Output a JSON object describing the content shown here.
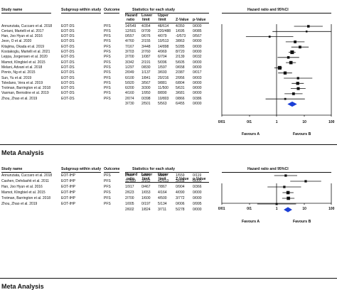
{
  "panels": [
    {
      "headers": {
        "study": "Study name",
        "subgroup": "Subgroup within study",
        "outcome": "Outcome",
        "stats": "Statistics for each study",
        "forest": "Hazard ratio and 95%CI",
        "hr": [
          "Hazard",
          "ratio"
        ],
        "lower": [
          "Lower",
          "limit"
        ],
        "upper": [
          "Upper",
          "limit"
        ],
        "z": "Z-Value",
        "p": "p-Value"
      },
      "rows": [
        {
          "study": "Annunziata, Cuccaro et al. 2018",
          "subgroup": "EOT-DS",
          "outcome": "PFS",
          "hr": "14/549",
          "lower": "4/354",
          "upper": "48/614",
          "z": "4/350",
          "p": "0/000"
        },
        {
          "study": "Ceriani, Martelli et al. 2017",
          "subgroup": "EOT-DS",
          "outcome": "PFS",
          "hr": "12/501",
          "lower": "0/709",
          "upper": "220/488",
          "z": "1/695",
          "p": "0/085"
        },
        {
          "study": "Han, Joo Hyun et al. 2016",
          "subgroup": "EOT-DS",
          "outcome": "PFS",
          "hr": "0/557",
          "lower": "0/076",
          "upper": "4/079",
          "z": "-0/573",
          "p": "0/567"
        },
        {
          "study": "Jeon, O et al. 2020",
          "subgroup": "EOT-DS",
          "outcome": "PFS",
          "hr": "4/760",
          "lower": "2/155",
          "upper": "10/513",
          "z": "3/863",
          "p": "0/000"
        },
        {
          "study": "Kitajima, Okada et al. 2019",
          "subgroup": "EOT-DS",
          "outcome": "PFS",
          "hr": "7/167",
          "lower": "3/448",
          "upper": "14/898",
          "z": "5/285",
          "p": "0/000"
        },
        {
          "study": "Kostakoglu, Martelli et al. 2021",
          "subgroup": "EOT-DS",
          "outcome": "PFS",
          "hr": "3/703",
          "lower": "2/760",
          "upper": "4/969",
          "z": "8/720",
          "p": "0/000"
        },
        {
          "study": "Leppa, Jorgensen et al. 2020",
          "subgroup": "EOT-DS",
          "outcome": "PFS",
          "hr": "2/700",
          "lower": "1/087",
          "upper": "6/704",
          "z": "2/139",
          "p": "0/032"
        },
        {
          "study": "Mamot, Klingbiel et al. 2015",
          "subgroup": "EOT-DS",
          "outcome": "PFS",
          "hr": "3/342",
          "lower": "2/191",
          "upper": "5/096",
          "z": "5/605",
          "p": "0/000"
        },
        {
          "study": "Melani, Advani et al. 2018",
          "subgroup": "EOT-DS",
          "outcome": "PFS",
          "hr": "1/297",
          "lower": "0/830",
          "upper": "1/597",
          "z": "0/658",
          "p": "0/000"
        },
        {
          "study": "Pinnix, Ng et al. 2015",
          "subgroup": "EOT-DS",
          "outcome": "PFS",
          "hr": "2/049",
          "lower": "1/137",
          "upper": "3/693",
          "z": "2/387",
          "p": "0/017"
        },
        {
          "study": "Sun, Yu et al. 2019",
          "subgroup": "EOT-DS",
          "outcome": "PFS",
          "hr": "6/100",
          "lower": "1/841",
          "upper": "20/216",
          "z": "2/956",
          "p": "0/003"
        },
        {
          "study": "Toledano, Vera et al. 2019",
          "subgroup": "EOT-DS",
          "outcome": "PFS",
          "hr": "5/920",
          "lower": "3/567",
          "upper": "9/881",
          "z": "6/804",
          "p": "0/000"
        },
        {
          "study": "Trotman, Barrington et al. 2018",
          "subgroup": "EOT-DS",
          "outcome": "PFS",
          "hr": "6/200",
          "lower": "3/300",
          "upper": "11/500",
          "z": "5/631",
          "p": "0/000"
        },
        {
          "study": "Vaxman, Bernstine et al. 2019",
          "subgroup": "EOT-DS",
          "outcome": "PFS",
          "hr": "4/160",
          "lower": "1/950",
          "upper": "8/890",
          "z": "3/681",
          "p": "0/000"
        },
        {
          "study": "Zhou, Zhao et al. 2019",
          "subgroup": "EOT-DS",
          "outcome": "PFS",
          "hr": "2/074",
          "lower": "0/398",
          "upper": "10/803",
          "z": "0/866",
          "p": "0/386"
        }
      ],
      "summary": {
        "hr": "3/730",
        "lower": "2/501",
        "upper": "5/563",
        "z": "6/455",
        "p": "0/000"
      },
      "axis_ticks": [
        "0/01",
        "0/1",
        "1",
        "10",
        "100"
      ],
      "favours_a": "Favours A",
      "favours_b": "Favours B"
    },
    {
      "section_title": "Meta Analysis",
      "headers": {
        "study": "Study name",
        "subgroup": "Subgroup within study",
        "outcome": "Outcome",
        "stats": "Statistics for each study",
        "forest": "Hazard ratio and 95%CI",
        "hr": [
          "Hazard",
          "ratio"
        ],
        "lower": [
          "Lower",
          "limit"
        ],
        "upper": [
          "Upper",
          "limit"
        ],
        "z": "Z-Value",
        "p": "p-Value"
      },
      "rows": [
        {
          "study": "Annunziata, Cuccaro et al. 2018",
          "subgroup": "EOT-IHP",
          "outcome": "PFS",
          "hr": "2/157",
          "lower": "0/821",
          "upper": "5/669",
          "z": "1/559",
          "p": "0/119"
        },
        {
          "study": "Cashen, Dehdashti et al. 2011",
          "subgroup": "EOT-IHP",
          "outcome": "PFS",
          "hr": "11/589",
          "lower": "3/162",
          "upper": "42/613",
          "z": "3/668",
          "p": "0/000"
        },
        {
          "study": "Han, Joo Hyun et al. 2016",
          "subgroup": "EOT-IHP",
          "outcome": "PFS",
          "hr": "1/917",
          "lower": "0/467",
          "upper": "7/867",
          "z": "0/904",
          "p": "0/366"
        },
        {
          "study": "Mamot, Klingbiel et al. 2015",
          "subgroup": "EOT-IHP",
          "outcome": "PFS",
          "hr": "2/623",
          "lower": "1/653",
          "upper": "4/164",
          "z": "4/090",
          "p": "0/000"
        },
        {
          "study": "Trotman, Barrington et al. 2018",
          "subgroup": "EOT-IHP",
          "outcome": "PFS",
          "hr": "2/700",
          "lower": "1/600",
          "upper": "4/500",
          "z": "3/772",
          "p": "0/000"
        },
        {
          "study": "Zhou, Zhao et al. 2019",
          "subgroup": "EOT-IHP",
          "outcome": "PFS",
          "hr": "1/005",
          "lower": "0/197",
          "upper": "5/134",
          "z": "0/006",
          "p": "0/995"
        }
      ],
      "summary": {
        "hr": "2/602",
        "lower": "1/824",
        "upper": "3/711",
        "z": "5/278",
        "p": "0/000"
      },
      "axis_ticks": [
        "0/01",
        "0/1",
        "1",
        "10",
        "100"
      ],
      "favours_a": "Favours A",
      "favours_b": "Favours B"
    }
  ],
  "footer_title": "Meta Analysis",
  "chart_data": [
    {
      "type": "scatter",
      "subtype": "forest-plot",
      "title": "Hazard ratio and 95%CI",
      "x_scale": "log",
      "xlim": [
        0.01,
        100
      ],
      "x_ticks": [
        0.01,
        0.1,
        1,
        10,
        100
      ],
      "points": [
        {
          "study": "Annunziata, Cuccaro et al. 2018",
          "hr": 14.549,
          "lower": 4.354,
          "upper": 48.614,
          "weight": 0.9
        },
        {
          "study": "Ceriani, Martelli et al. 2017",
          "hr": 12.501,
          "lower": 0.709,
          "upper": 220.488,
          "weight": 0.5
        },
        {
          "study": "Han, Joo Hyun et al. 2016",
          "hr": 0.557,
          "lower": 0.076,
          "upper": 4.079,
          "weight": 0.6
        },
        {
          "study": "Jeon, O et al. 2020",
          "hr": 4.76,
          "lower": 2.155,
          "upper": 10.513,
          "weight": 1.0
        },
        {
          "study": "Kitajima, Okada et al. 2019",
          "hr": 7.167,
          "lower": 3.448,
          "upper": 14.898,
          "weight": 1.0
        },
        {
          "study": "Kostakoglu, Martelli et al. 2021",
          "hr": 3.703,
          "lower": 2.76,
          "upper": 4.969,
          "weight": 1.5
        },
        {
          "study": "Leppa, Jorgensen et al. 2020",
          "hr": 2.7,
          "lower": 1.087,
          "upper": 6.704,
          "weight": 0.9
        },
        {
          "study": "Mamot, Klingbiel et al. 2015",
          "hr": 3.342,
          "lower": 2.191,
          "upper": 5.096,
          "weight": 1.3
        },
        {
          "study": "Melani, Advani et al. 2018",
          "hr": 1.297,
          "lower": 0.83,
          "upper": 1.597,
          "weight": 1.5
        },
        {
          "study": "Pinnix, Ng et al. 2015",
          "hr": 2.049,
          "lower": 1.137,
          "upper": 3.693,
          "weight": 1.2
        },
        {
          "study": "Sun, Yu et al. 2019",
          "hr": 6.1,
          "lower": 1.841,
          "upper": 20.216,
          "weight": 0.8
        },
        {
          "study": "Toledano, Vera et al. 2019",
          "hr": 5.92,
          "lower": 3.567,
          "upper": 9.881,
          "weight": 1.2
        },
        {
          "study": "Trotman, Barrington et al. 2018",
          "hr": 6.2,
          "lower": 3.3,
          "upper": 11.5,
          "weight": 1.1
        },
        {
          "study": "Vaxman, Bernstine et al. 2019",
          "hr": 4.16,
          "lower": 1.95,
          "upper": 8.89,
          "weight": 1.0
        },
        {
          "study": "Zhou, Zhao et al. 2019",
          "hr": 2.074,
          "lower": 0.398,
          "upper": 10.803,
          "weight": 0.6
        }
      ],
      "summary": {
        "hr": 3.73,
        "lower": 2.501,
        "upper": 5.563
      },
      "favours_left": "Favours A",
      "favours_right": "Favours B"
    },
    {
      "type": "scatter",
      "subtype": "forest-plot",
      "title": "Hazard ratio and 95%CI",
      "x_scale": "log",
      "xlim": [
        0.01,
        100
      ],
      "x_ticks": [
        0.01,
        0.1,
        1,
        10,
        100
      ],
      "points": [
        {
          "study": "Annunziata, Cuccaro et al. 2018",
          "hr": 2.157,
          "lower": 0.821,
          "upper": 5.669,
          "weight": 0.8
        },
        {
          "study": "Cashen, Dehdashti et al. 2011",
          "hr": 11.589,
          "lower": 3.162,
          "upper": 42.613,
          "weight": 0.8
        },
        {
          "study": "Han, Joo Hyun et al. 2016",
          "hr": 1.917,
          "lower": 0.467,
          "upper": 7.867,
          "weight": 0.8
        },
        {
          "study": "Mamot, Klingbiel et al. 2015",
          "hr": 2.623,
          "lower": 1.653,
          "upper": 4.164,
          "weight": 1.3
        },
        {
          "study": "Trotman, Barrington et al. 2018",
          "hr": 2.7,
          "lower": 1.6,
          "upper": 4.5,
          "weight": 1.3
        },
        {
          "study": "Zhou, Zhao et al. 2019",
          "hr": 1.005,
          "lower": 0.197,
          "upper": 5.134,
          "weight": 0.7
        }
      ],
      "summary": {
        "hr": 2.602,
        "lower": 1.824,
        "upper": 3.711
      },
      "favours_left": "Favours A",
      "favours_right": "Favours B"
    }
  ]
}
